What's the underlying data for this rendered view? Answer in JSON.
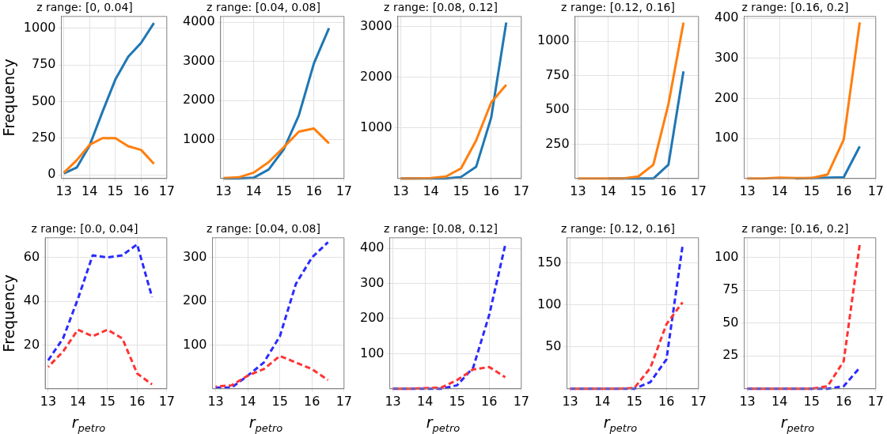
{
  "chart_data": [
    {
      "type": "line",
      "title": "z range: [0, 0.04]",
      "ylabel": "Frequency",
      "x": [
        13,
        13.5,
        14,
        14.5,
        15,
        15.5,
        16,
        16.5
      ],
      "xlim": [
        12.9,
        17
      ],
      "xticks": [
        13,
        14,
        15,
        16,
        17
      ],
      "ylim": [
        -25,
        1080
      ],
      "yticks": [
        0,
        250,
        500,
        750,
        1000
      ],
      "grid": true,
      "line_style": "solid",
      "series": [
        {
          "color": "#1f77b4",
          "values": [
            10,
            50,
            200,
            430,
            650,
            805,
            900,
            1035
          ]
        },
        {
          "color": "#ff7f0e",
          "values": [
            15,
            100,
            205,
            250,
            250,
            195,
            170,
            75
          ]
        }
      ]
    },
    {
      "type": "line",
      "title": "z range: [0.04, 0.08]",
      "x": [
        13,
        13.5,
        14,
        14.5,
        15,
        15.5,
        16,
        16.5
      ],
      "xlim": [
        12.9,
        17
      ],
      "xticks": [
        13,
        14,
        15,
        16,
        17
      ],
      "ylim": [
        0,
        4150
      ],
      "yticks": [
        1000,
        2000,
        3000,
        4000
      ],
      "grid": true,
      "line_style": "solid",
      "series": [
        {
          "color": "#1f77b4",
          "values": [
            0,
            0,
            20,
            230,
            750,
            1620,
            2950,
            3850
          ]
        },
        {
          "color": "#ff7f0e",
          "values": [
            10,
            30,
            150,
            420,
            800,
            1200,
            1280,
            900
          ]
        }
      ]
    },
    {
      "type": "line",
      "title": "z range: [0.08, 0.12]",
      "x": [
        13,
        13.5,
        14,
        14.5,
        15,
        15.5,
        16,
        16.5
      ],
      "xlim": [
        12.9,
        17
      ],
      "xticks": [
        13,
        14,
        15,
        16,
        17
      ],
      "ylim": [
        0,
        3200
      ],
      "yticks": [
        1000,
        2000,
        3000
      ],
      "grid": true,
      "line_style": "solid",
      "series": [
        {
          "color": "#1f77b4",
          "values": [
            0,
            0,
            0,
            0,
            30,
            230,
            1200,
            3080
          ]
        },
        {
          "color": "#ff7f0e",
          "values": [
            0,
            0,
            10,
            40,
            200,
            750,
            1500,
            1850
          ]
        }
      ]
    },
    {
      "type": "line",
      "title": "z range: [0.12, 0.16]",
      "x": [
        13,
        13.5,
        14,
        14.5,
        15,
        15.5,
        16,
        16.5
      ],
      "xlim": [
        12.9,
        17
      ],
      "xticks": [
        13,
        14,
        15,
        16,
        17
      ],
      "ylim": [
        0,
        1180
      ],
      "yticks": [
        250,
        500,
        750,
        1000
      ],
      "grid": true,
      "line_style": "solid",
      "series": [
        {
          "color": "#1f77b4",
          "values": [
            null,
            null,
            0,
            0,
            0,
            0,
            100,
            780
          ]
        },
        {
          "color": "#ff7f0e",
          "values": [
            0,
            0,
            0,
            0,
            15,
            100,
            540,
            1135
          ]
        }
      ]
    },
    {
      "type": "line",
      "title": "z range: [0.16, 0.2]",
      "x": [
        13,
        13.5,
        14,
        14.5,
        15,
        15.5,
        16,
        16.5
      ],
      "xlim": [
        12.9,
        17
      ],
      "xticks": [
        13,
        14,
        15,
        16,
        17
      ],
      "ylim": [
        0,
        405
      ],
      "yticks": [
        100,
        200,
        300,
        400
      ],
      "grid": true,
      "line_style": "solid",
      "series": [
        {
          "color": "#1f77b4",
          "values": [
            null,
            null,
            null,
            0,
            1,
            2,
            3,
            80
          ]
        },
        {
          "color": "#ff7f0e",
          "values": [
            0,
            0,
            2,
            1,
            1,
            10,
            97,
            390
          ]
        }
      ]
    },
    {
      "type": "line",
      "title": "z range: [0.0, 0.04]",
      "ylabel": "Frequency",
      "xlabel": "r$_{petro}$",
      "x": [
        13,
        13.5,
        14,
        14.5,
        15,
        15.5,
        16,
        16.5
      ],
      "xlim": [
        12.9,
        17
      ],
      "xticks": [
        13,
        14,
        15,
        16,
        17
      ],
      "ylim": [
        0,
        69
      ],
      "yticks": [
        20,
        40,
        60
      ],
      "grid": true,
      "line_style": "dashed",
      "series": [
        {
          "color": "#2b2bff",
          "values": [
            13,
            23,
            41,
            61,
            60,
            61,
            66,
            42
          ]
        },
        {
          "color": "#ff3333",
          "values": [
            10,
            17,
            27,
            24,
            27,
            23,
            7,
            2
          ]
        }
      ]
    },
    {
      "type": "line",
      "title": "z range: [0.04, 0.08]",
      "xlabel": "r$_{petro}$",
      "x": [
        13,
        13.5,
        14,
        14.5,
        15,
        15.5,
        16,
        16.5
      ],
      "xlim": [
        12.9,
        17
      ],
      "xticks": [
        13,
        14,
        15,
        16,
        17
      ],
      "ylim": [
        0,
        345
      ],
      "yticks": [
        100,
        200,
        300
      ],
      "grid": true,
      "line_style": "dashed",
      "series": [
        {
          "color": "#2b2bff",
          "values": [
            3,
            3,
            30,
            60,
            120,
            240,
            300,
            335
          ]
        },
        {
          "color": "#ff3333",
          "values": [
            5,
            8,
            30,
            45,
            75,
            60,
            45,
            20
          ]
        }
      ]
    },
    {
      "type": "line",
      "title": "z range: [0.08, 0.12]",
      "xlabel": "r$_{petro}$",
      "x": [
        13,
        13.5,
        14,
        14.5,
        15,
        15.5,
        16,
        16.5
      ],
      "xlim": [
        12.9,
        17
      ],
      "xticks": [
        13,
        14,
        15,
        16,
        17
      ],
      "ylim": [
        0,
        430
      ],
      "yticks": [
        100,
        200,
        300,
        400
      ],
      "grid": true,
      "line_style": "dashed",
      "series": [
        {
          "color": "#2b2bff",
          "values": [
            0,
            0,
            0,
            0,
            10,
            60,
            210,
            410
          ]
        },
        {
          "color": "#ff3333",
          "values": [
            0,
            0,
            2,
            3,
            25,
            55,
            62,
            33
          ]
        }
      ]
    },
    {
      "type": "line",
      "title": "z range: [0.12, 0.16]",
      "xlabel": "r$_{petro}$",
      "x": [
        13,
        13.5,
        14,
        14.5,
        15,
        15.5,
        16,
        16.5
      ],
      "xlim": [
        12.9,
        17
      ],
      "xticks": [
        13,
        14,
        15,
        16,
        17
      ],
      "ylim": [
        0,
        180
      ],
      "yticks": [
        50,
        100,
        150
      ],
      "grid": true,
      "line_style": "dashed",
      "series": [
        {
          "color": "#2b2bff",
          "values": [
            0,
            0,
            0,
            0,
            0,
            8,
            35,
            170
          ]
        },
        {
          "color": "#ff3333",
          "values": [
            0,
            0,
            0,
            0,
            1,
            25,
            77,
            103
          ]
        }
      ]
    },
    {
      "type": "line",
      "title": "z range: [0.16, 0.2]",
      "xlabel": "r$_{petro}$",
      "x": [
        13,
        13.5,
        14,
        14.5,
        15,
        15.5,
        16,
        16.5
      ],
      "xlim": [
        12.9,
        17
      ],
      "xticks": [
        13,
        14,
        15,
        16,
        17
      ],
      "ylim": [
        0,
        115
      ],
      "yticks": [
        25,
        50,
        75,
        100
      ],
      "grid": true,
      "line_style": "dashed",
      "series": [
        {
          "color": "#2b2bff",
          "values": [
            0,
            0,
            0,
            0,
            0,
            0,
            2,
            16
          ]
        },
        {
          "color": "#ff3333",
          "values": [
            0,
            0,
            0,
            0,
            0,
            2,
            21,
            110
          ]
        }
      ]
    }
  ]
}
